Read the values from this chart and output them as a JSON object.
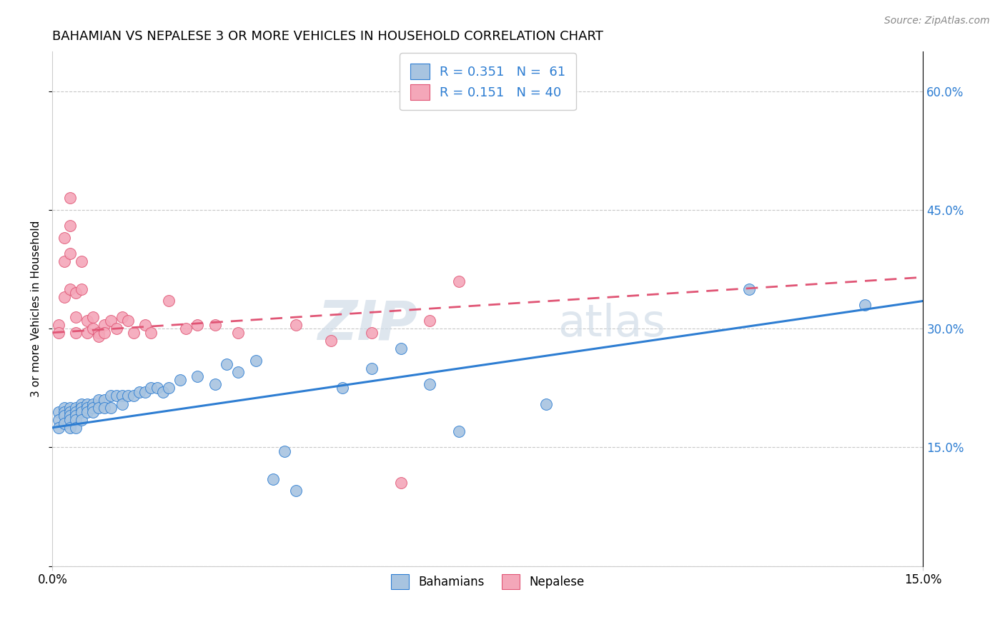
{
  "title": "BAHAMIAN VS NEPALESE 3 OR MORE VEHICLES IN HOUSEHOLD CORRELATION CHART",
  "source": "Source: ZipAtlas.com",
  "ylabel": "3 or more Vehicles in Household",
  "xlim": [
    0.0,
    0.15
  ],
  "ylim": [
    0.0,
    0.65
  ],
  "blue_color": "#a8c4e0",
  "pink_color": "#f4a7b9",
  "blue_line_color": "#2d7dd2",
  "pink_line_color": "#e05575",
  "grid_color": "#c8c8c8",
  "bahamians_label": "Bahamians",
  "nepalese_label": "Nepalese",
  "blue_trend_x": [
    0.0,
    0.15
  ],
  "blue_trend_y": [
    0.175,
    0.335
  ],
  "pink_trend_x": [
    0.0,
    0.15
  ],
  "pink_trend_y": [
    0.295,
    0.365
  ],
  "blue_scatter_x": [
    0.001,
    0.001,
    0.001,
    0.002,
    0.002,
    0.002,
    0.002,
    0.003,
    0.003,
    0.003,
    0.003,
    0.003,
    0.004,
    0.004,
    0.004,
    0.004,
    0.004,
    0.005,
    0.005,
    0.005,
    0.005,
    0.006,
    0.006,
    0.006,
    0.007,
    0.007,
    0.007,
    0.008,
    0.008,
    0.009,
    0.009,
    0.01,
    0.01,
    0.011,
    0.012,
    0.012,
    0.013,
    0.014,
    0.015,
    0.016,
    0.017,
    0.018,
    0.019,
    0.02,
    0.022,
    0.025,
    0.028,
    0.03,
    0.032,
    0.035,
    0.038,
    0.04,
    0.042,
    0.05,
    0.055,
    0.06,
    0.065,
    0.07,
    0.085,
    0.12,
    0.14
  ],
  "blue_scatter_y": [
    0.195,
    0.185,
    0.175,
    0.2,
    0.195,
    0.19,
    0.18,
    0.2,
    0.195,
    0.19,
    0.185,
    0.175,
    0.2,
    0.195,
    0.19,
    0.185,
    0.175,
    0.205,
    0.2,
    0.195,
    0.185,
    0.205,
    0.2,
    0.195,
    0.205,
    0.2,
    0.195,
    0.21,
    0.2,
    0.21,
    0.2,
    0.215,
    0.2,
    0.215,
    0.215,
    0.205,
    0.215,
    0.215,
    0.22,
    0.22,
    0.225,
    0.225,
    0.22,
    0.225,
    0.235,
    0.24,
    0.23,
    0.255,
    0.245,
    0.26,
    0.11,
    0.145,
    0.095,
    0.225,
    0.25,
    0.275,
    0.23,
    0.17,
    0.205,
    0.35,
    0.33
  ],
  "pink_scatter_x": [
    0.001,
    0.001,
    0.002,
    0.002,
    0.002,
    0.003,
    0.003,
    0.003,
    0.003,
    0.004,
    0.004,
    0.004,
    0.005,
    0.005,
    0.006,
    0.006,
    0.007,
    0.007,
    0.008,
    0.008,
    0.009,
    0.009,
    0.01,
    0.011,
    0.012,
    0.013,
    0.014,
    0.016,
    0.017,
    0.02,
    0.023,
    0.025,
    0.028,
    0.032,
    0.042,
    0.048,
    0.055,
    0.06,
    0.065,
    0.07
  ],
  "pink_scatter_y": [
    0.305,
    0.295,
    0.415,
    0.385,
    0.34,
    0.465,
    0.43,
    0.395,
    0.35,
    0.345,
    0.315,
    0.295,
    0.385,
    0.35,
    0.31,
    0.295,
    0.315,
    0.3,
    0.295,
    0.29,
    0.305,
    0.295,
    0.31,
    0.3,
    0.315,
    0.31,
    0.295,
    0.305,
    0.295,
    0.335,
    0.3,
    0.305,
    0.305,
    0.295,
    0.305,
    0.285,
    0.295,
    0.105,
    0.31,
    0.36
  ]
}
